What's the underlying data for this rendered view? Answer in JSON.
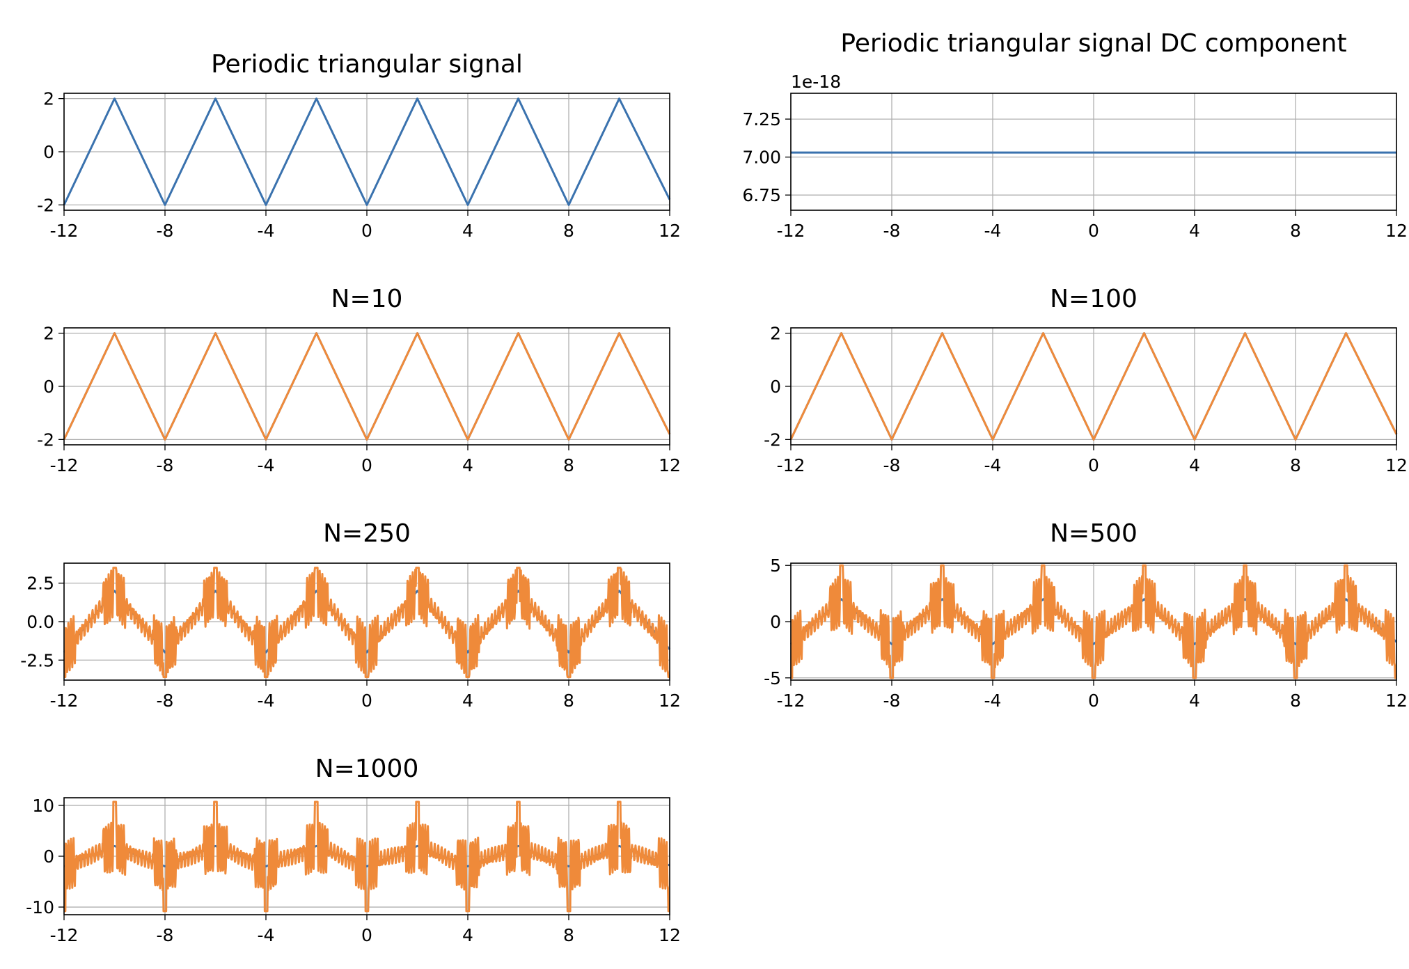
{
  "colors": {
    "original": "#3a72ae",
    "approximation": "#ef8a3a",
    "grid": "#b0b0b0"
  },
  "chart_data": [
    {
      "type": "line",
      "title": "Periodic triangular signal",
      "xlim": [
        -12,
        12
      ],
      "ylim": [
        -2.2,
        2.2
      ],
      "xticks": [
        -12,
        -8,
        -4,
        0,
        4,
        8,
        12
      ],
      "yticks": [
        -2,
        0,
        2
      ],
      "ytick_labels": [
        "-2",
        "0",
        "2"
      ],
      "grid": true,
      "series": [
        {
          "role": "original",
          "kind": "triangle",
          "period": 4,
          "amplitude": 2,
          "x": [
            -12,
            -10,
            -8,
            -6,
            -4,
            -2,
            0,
            2,
            4,
            6,
            8,
            10,
            12
          ],
          "y": [
            -2,
            2,
            -2,
            2,
            -2,
            2,
            -2,
            2,
            -2,
            2,
            -2,
            2,
            -1.8
          ]
        }
      ]
    },
    {
      "type": "line",
      "title": "Periodic triangular signal DC component",
      "offset_text": "1e-18",
      "xlim": [
        -12,
        12
      ],
      "ylim": [
        6.65,
        7.42
      ],
      "xticks": [
        -12,
        -8,
        -4,
        0,
        4,
        8,
        12
      ],
      "yticks": [
        6.75,
        7.0,
        7.25
      ],
      "ytick_labels": [
        "6.75",
        "7.00",
        "7.25"
      ],
      "grid": true,
      "series": [
        {
          "role": "original",
          "kind": "constant",
          "x": [
            -12,
            12
          ],
          "y": [
            7.03,
            7.03
          ]
        }
      ]
    },
    {
      "type": "line",
      "title": "N=10",
      "xlim": [
        -12,
        12
      ],
      "ylim": [
        -2.2,
        2.2
      ],
      "xticks": [
        -12,
        -8,
        -4,
        0,
        4,
        8,
        12
      ],
      "yticks": [
        -2,
        0,
        2
      ],
      "ytick_labels": [
        "-2",
        "0",
        "2"
      ],
      "grid": true,
      "series": [
        {
          "role": "original",
          "kind": "triangle",
          "period": 4,
          "amplitude": 2
        },
        {
          "role": "approximation",
          "kind": "triangle",
          "period": 4,
          "amplitude": 2
        }
      ]
    },
    {
      "type": "line",
      "title": "N=100",
      "xlim": [
        -12,
        12
      ],
      "ylim": [
        -2.2,
        2.2
      ],
      "xticks": [
        -12,
        -8,
        -4,
        0,
        4,
        8,
        12
      ],
      "yticks": [
        -2,
        0,
        2
      ],
      "ytick_labels": [
        "-2",
        "0",
        "2"
      ],
      "grid": true,
      "series": [
        {
          "role": "original",
          "kind": "triangle",
          "period": 4,
          "amplitude": 2
        },
        {
          "role": "approximation",
          "kind": "triangle",
          "period": 4,
          "amplitude": 2
        }
      ]
    },
    {
      "type": "line",
      "title": "N=250",
      "xlim": [
        -12,
        12
      ],
      "ylim": [
        -3.8,
        3.8
      ],
      "xticks": [
        -12,
        -8,
        -4,
        0,
        4,
        8,
        12
      ],
      "yticks": [
        -2.5,
        0,
        2.5
      ],
      "ytick_labels": [
        "-2.5",
        "0.0",
        "2.5"
      ],
      "grid": true,
      "series": [
        {
          "role": "original",
          "kind": "triangle",
          "period": 4,
          "amplitude": 2
        },
        {
          "role": "approximation",
          "kind": "oscillating",
          "period": 4,
          "peak_max": 3.5,
          "peak_min": -3.6
        }
      ]
    },
    {
      "type": "line",
      "title": "N=500",
      "xlim": [
        -12,
        12
      ],
      "ylim": [
        -5.2,
        5.2
      ],
      "xticks": [
        -12,
        -8,
        -4,
        0,
        4,
        8,
        12
      ],
      "yticks": [
        -5,
        0,
        5
      ],
      "ytick_labels": [
        "-5",
        "0",
        "5"
      ],
      "grid": true,
      "series": [
        {
          "role": "original",
          "kind": "triangle",
          "period": 4,
          "amplitude": 2
        },
        {
          "role": "approximation",
          "kind": "oscillating",
          "period": 4,
          "peak_max": 5.0,
          "peak_min": -5.0
        }
      ]
    },
    {
      "type": "line",
      "title": "N=1000",
      "xlim": [
        -12,
        12
      ],
      "ylim": [
        -11.5,
        11.5
      ],
      "xticks": [
        -12,
        -8,
        -4,
        0,
        4,
        8,
        12
      ],
      "yticks": [
        -10,
        0,
        10
      ],
      "ytick_labels": [
        "-10",
        "0",
        "10"
      ],
      "grid": true,
      "series": [
        {
          "role": "original",
          "kind": "triangle",
          "period": 4,
          "amplitude": 2
        },
        {
          "role": "approximation",
          "kind": "oscillating",
          "period": 4,
          "peak_max": 10.7,
          "peak_min": -10.8
        }
      ]
    }
  ]
}
